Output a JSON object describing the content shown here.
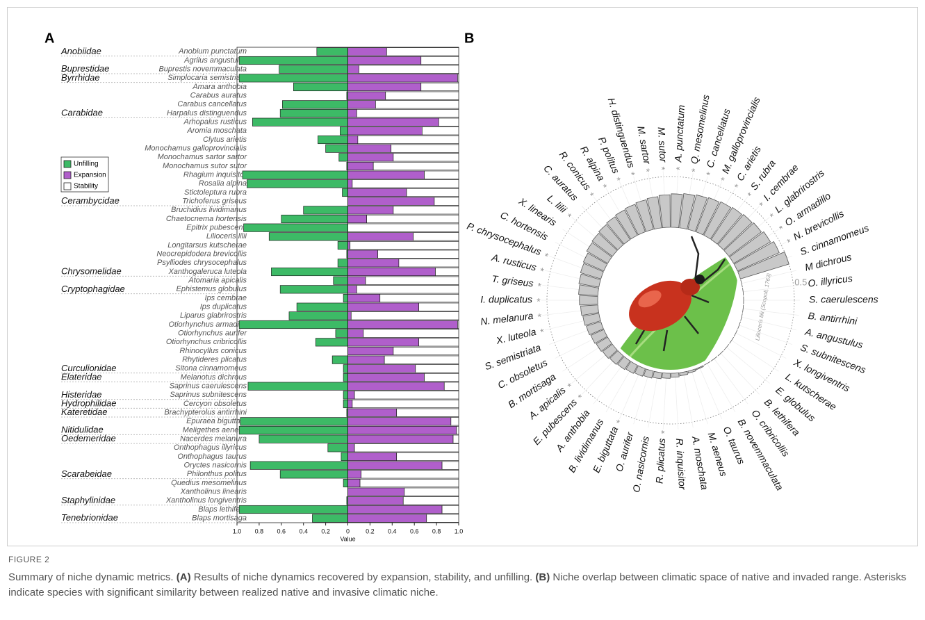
{
  "chart_data": [
    {
      "type": "diverging_bar",
      "panel": "A",
      "categories": [
        "Anobium punctatum",
        "Agrilus angustulus",
        "Buprestis novemmaculata",
        "Simplocaria semistriata",
        "Amara anthobia",
        "Carabus auratus",
        "Carabus cancellatus",
        "Harpalus distinguendus",
        "Arhopalus rusticus",
        "Aromia moschata",
        "Clytus arietis",
        "Monochamus galloprovincialis",
        "Monochamus sartor sartor",
        "Monochamus sutor sutor",
        "Rhagium inquisitor",
        "Rosalia alpina",
        "Stictoleptura rubra",
        "Trichoferus griseus",
        "Bruchidius lividimanus",
        "Chaetocnema hortensis",
        "Epitrix pubescens",
        "Lilioceris lilii",
        "Longitarsus kutscherae",
        "Neocrepidodera brevicollis",
        "Psylliodes chrysocephalus",
        "Xanthogaleruca luteola",
        "Atomaria apicalis",
        "Ephistemus globulus",
        "Ips cembrae",
        "Ips duplicatus",
        "Liparus glabrirostris",
        "Otiorhynchus armadillo",
        "Otiorhynchus aurifer",
        "Otiorhynchus cribricollis",
        "Rhinocyllus conicus",
        "Rhytideres plicatus",
        "Sitona cinnamomeus",
        "Melanotus dichrous",
        "Saprinus caerulescens",
        "Saprinus subnitescens",
        "Cercyon obsoletus",
        "Brachypterolus antirrhini",
        "Epuraea biguttata",
        "Meligethes aeneus",
        "Nacerdes melanura",
        "Onthophagus illyricus",
        "Onthophagus taurus",
        "Oryctes nasicornis",
        "Philonthus politus",
        "Quedius mesomelinus",
        "Xantholinus linearis",
        "Xantholinus longiventris",
        "Blaps lethifera",
        "Blaps mortisaga"
      ],
      "families": [
        "Anobiidae",
        null,
        "Buprestidae",
        "Byrrhidae",
        null,
        null,
        null,
        "Carabidae",
        null,
        null,
        null,
        null,
        null,
        null,
        null,
        null,
        null,
        "Cerambycidae",
        null,
        null,
        null,
        null,
        null,
        null,
        null,
        "Chrysomelidae",
        null,
        "Cryptophagidae",
        null,
        null,
        null,
        null,
        null,
        null,
        null,
        null,
        "Curculionidae",
        "Elateridae",
        null,
        "Histeridae",
        "Hydrophilidae",
        "Kateretidae",
        null,
        "Nitidulidae",
        "Oedemeridae",
        null,
        null,
        null,
        "Scarabeidae",
        null,
        null,
        "Staphylinidae",
        null,
        "Tenebrionidae"
      ],
      "series": [
        {
          "name": "Unfilling",
          "color": "#3dba66",
          "values": [
            0.28,
            0.98,
            0.62,
            0.98,
            0.49,
            0.01,
            0.59,
            0.61,
            0.86,
            0.07,
            0.27,
            0.2,
            0.08,
            0.01,
            0.95,
            0.91,
            0.05,
            0,
            0.4,
            0.6,
            0.94,
            0.71,
            0.09,
            0.01,
            0.09,
            0.69,
            0.13,
            0.61,
            0.04,
            0.46,
            0.53,
            0.98,
            0.11,
            0.29,
            0,
            0.14,
            0.04,
            0.04,
            0.9,
            0.04,
            0.04,
            0.01,
            0.97,
            0.98,
            0.8,
            0.18,
            0.06,
            0.88,
            0.61,
            0.04,
            0,
            0.01,
            0.98,
            0.32
          ]
        },
        {
          "name": "Expansion",
          "color": "#b05fcb",
          "values": [
            0.35,
            0.66,
            0.1,
            0.99,
            0.66,
            0.34,
            0.25,
            0.08,
            0.82,
            0.67,
            0.09,
            0.39,
            0.41,
            0.23,
            0.69,
            0.04,
            0.53,
            0.78,
            0.41,
            0.17,
            0,
            0.59,
            0.02,
            0.27,
            0.46,
            0.79,
            0.16,
            0.08,
            0.29,
            0.64,
            0.03,
            0.99,
            0.14,
            0.64,
            0.41,
            0.33,
            0.61,
            0.69,
            0.87,
            0.06,
            0.04,
            0.44,
            0.93,
            0.98,
            0.95,
            0.06,
            0.44,
            0.85,
            0.12,
            0.11,
            0.51,
            0.5,
            0.85,
            0.71
          ]
        },
        {
          "name": "Stability",
          "color": "#ffffff",
          "values": [
            0.65,
            0.34,
            0.9,
            0.01,
            0.34,
            0.66,
            0.75,
            0.92,
            0.18,
            0.33,
            0.91,
            0.61,
            0.59,
            0.77,
            0.31,
            0.96,
            0.47,
            0.22,
            0.59,
            0.83,
            1,
            0.41,
            0.98,
            0.73,
            0.54,
            0.21,
            0.84,
            0.92,
            0.71,
            0.36,
            0.97,
            0.01,
            0.86,
            0.36,
            0.59,
            0.67,
            0.39,
            0.31,
            0.13,
            0.94,
            0.96,
            0.56,
            0.07,
            0.02,
            0.05,
            0.94,
            0.56,
            0.15,
            0.88,
            0.89,
            0.49,
            0.5,
            0.15,
            0.29
          ]
        }
      ],
      "xlim": [
        -1,
        1
      ],
      "xticks": [
        {
          "value": -1,
          "label": "1.0"
        },
        {
          "value": -0.8,
          "label": "0.8"
        },
        {
          "value": -0.6,
          "label": "0.6"
        },
        {
          "value": -0.4,
          "label": "0.4"
        },
        {
          "value": -0.2,
          "label": "0.2"
        },
        0,
        0.2,
        0.4,
        0.6,
        0.8,
        {
          "value": 1,
          "label": "1.0"
        }
      ],
      "xlabel": "Value"
    },
    {
      "type": "circular_bar",
      "panel": "B",
      "categories": [
        "S. cinnamomeus",
        "N. brevicollis",
        "O. armadillo",
        "L. glabrirostris",
        "I. cembrae",
        "S. rubra",
        "C. arietis",
        "M. galloprovincialis",
        "C. cancellatus",
        "Q. mesomelinus",
        "A. punctatum",
        "M. sutor",
        "M. sartor",
        "H. distinguendus",
        "P. politus",
        "R. alpina",
        "R. conicus",
        "C. auratus",
        "L. lilii",
        "X. linearis",
        "C. hortensis",
        "P. chrysocephalus",
        "A. rusticus",
        "T. griseus",
        "I. duplicatus",
        "N. melanura",
        "X. luteola",
        "S. semistriata",
        "C. obsoletus",
        "B. mortisaga",
        "A. apicalis",
        "E. pubescens",
        "A. anthobia",
        "B. lividimanus",
        "E. biguttata",
        "O. aurifer",
        "O. nasicornis",
        "R. plicatus",
        "R. inquisitor",
        "A. moschata",
        "M. aeneus",
        "O. taurus",
        "B. novemmaculata",
        "O. cribricollis",
        "B. lethifera",
        "E. globulus",
        "L. kutscherae",
        "X. longiventris",
        "S. subnitescens",
        "A. angustulus",
        "B. antirrhini",
        "S. caerulescens",
        "O. illyricus",
        "M dichrous"
      ],
      "values": [
        0.5,
        0.45,
        0.42,
        0.4,
        0.39,
        0.38,
        0.37,
        0.36,
        0.35,
        0.34,
        0.33,
        0.32,
        0.31,
        0.3,
        0.29,
        0.28,
        0.27,
        0.26,
        0.25,
        0.24,
        0.22,
        0.21,
        0.2,
        0.19,
        0.18,
        0.17,
        0.16,
        0.15,
        0.14,
        0.13,
        0.12,
        0.11,
        0.1,
        0.09,
        0.08,
        0.07,
        0.06,
        0.05,
        0.04,
        0.03,
        0.02,
        0.01,
        0,
        0,
        0,
        0,
        0,
        0,
        0,
        0,
        0,
        0,
        0,
        0
      ],
      "significant": [
        false,
        true,
        true,
        true,
        true,
        true,
        true,
        true,
        true,
        true,
        true,
        true,
        true,
        true,
        true,
        true,
        true,
        false,
        true,
        false,
        false,
        true,
        true,
        true,
        true,
        true,
        true,
        false,
        false,
        false,
        true,
        true,
        false,
        false,
        true,
        false,
        false,
        true,
        false,
        false,
        false,
        false,
        false,
        false,
        false,
        false,
        false,
        false,
        false,
        false,
        false,
        false,
        false,
        false
      ],
      "marker": "*",
      "color": "#c8c8c8",
      "rlim": [
        0,
        0.5
      ],
      "rticks": [
        0.5
      ],
      "photo_credit": "Lilioceris lilii (Scopoli, 1763)"
    }
  ],
  "caption": {
    "label": "FIGURE 2",
    "segments": [
      {
        "text": "Summary of niche dynamic metrics. ",
        "bold": false
      },
      {
        "text": "(A)",
        "bold": true
      },
      {
        "text": " Results of niche dynamics recovered by expansion, stability, and unfilling. ",
        "bold": false
      },
      {
        "text": "(B)",
        "bold": true
      },
      {
        "text": " Niche overlap between climatic space of native and invaded range. Asterisks indicate species with significant similarity between realized native and invasive climatic niche.",
        "bold": false
      }
    ]
  }
}
